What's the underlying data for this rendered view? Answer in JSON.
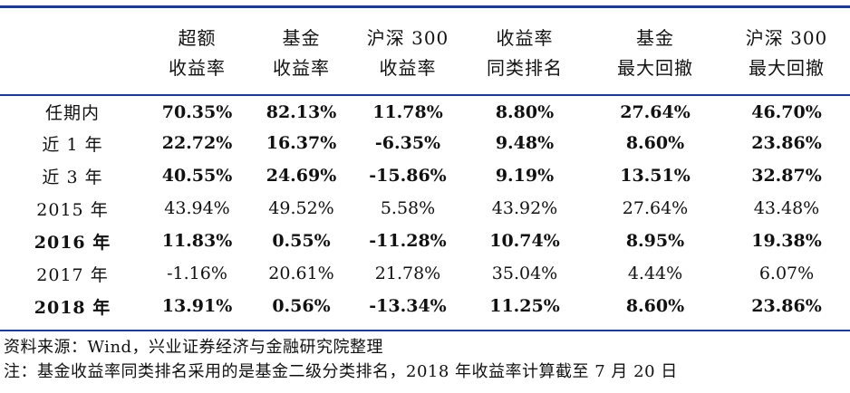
{
  "table": {
    "headers": [
      {
        "line1": "",
        "line2": ""
      },
      {
        "line1": "超额",
        "line2": "收益率"
      },
      {
        "line1": "基金",
        "line2": "收益率"
      },
      {
        "line1": "沪深 300",
        "line2": "收益率"
      },
      {
        "line1": "收益率",
        "line2": "同类排名"
      },
      {
        "line1": "基金",
        "line2": "最大回撤"
      },
      {
        "line1": "沪深 300",
        "line2": "最大回撤"
      }
    ],
    "rows": [
      {
        "label": "任期内",
        "cells": [
          "70.35%",
          "82.13%",
          "11.78%",
          "8.80%",
          "27.64%",
          "46.70%"
        ]
      },
      {
        "label": "近 1 年",
        "cells": [
          "22.72%",
          "16.37%",
          "-6.35%",
          "9.48%",
          "8.60%",
          "23.86%"
        ]
      },
      {
        "label": "近 3 年",
        "cells": [
          "40.55%",
          "24.69%",
          "-15.86%",
          "9.19%",
          "13.51%",
          "32.87%"
        ]
      },
      {
        "label": "2015 年",
        "cells": [
          "43.94%",
          "49.52%",
          "5.58%",
          "43.92%",
          "27.64%",
          "43.48%"
        ]
      },
      {
        "label": "2016 年",
        "cells": [
          "11.83%",
          "0.55%",
          "-11.28%",
          "10.74%",
          "8.95%",
          "19.38%"
        ]
      },
      {
        "label": "2017 年",
        "cells": [
          "-1.16%",
          "20.61%",
          "21.78%",
          "35.04%",
          "4.44%",
          "6.07%"
        ]
      },
      {
        "label": "2018 年",
        "cells": [
          "13.91%",
          "0.56%",
          "-13.34%",
          "11.25%",
          "8.60%",
          "23.86%"
        ]
      }
    ]
  },
  "notes": {
    "source": "资料来源：Wind，兴业证券经济与金融研究院整理",
    "note": "注：基金收益率同类排名采用的是基金二级分类排名，2018 年收益率计算截至 7 月 20 日"
  },
  "colors": {
    "rule": "#1f3a93",
    "text": "#111111",
    "background": "#ffffff"
  }
}
